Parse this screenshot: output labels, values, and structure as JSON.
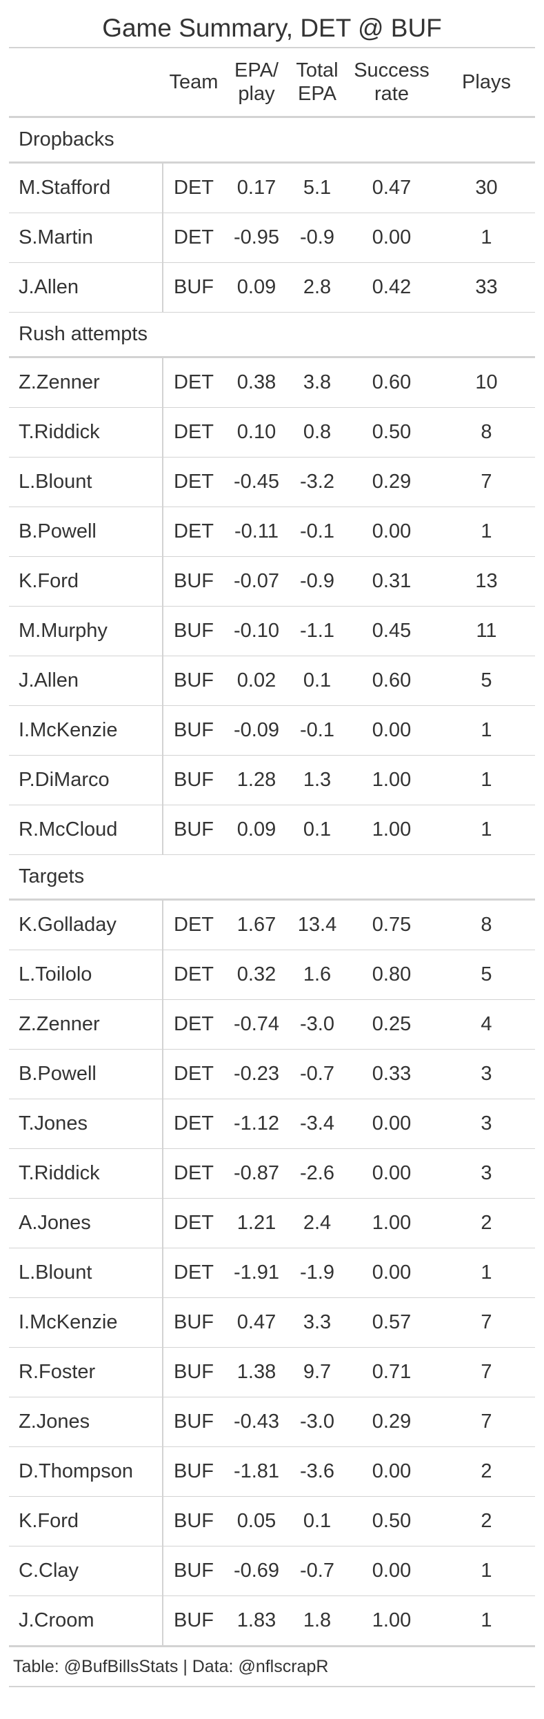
{
  "title": "Game Summary, DET @ BUF",
  "headers": {
    "name": "",
    "team": "Team",
    "epa_line1": "EPA/",
    "epa_line2": "play",
    "total_line1": "Total",
    "total_line2": "EPA",
    "success_line1": "Success",
    "success_line2": "rate",
    "plays": "Plays"
  },
  "groups": [
    {
      "label": "Dropbacks",
      "rows": [
        {
          "name": "M.Stafford",
          "team": "DET",
          "epa_play": "0.17",
          "total_epa": "5.1",
          "success_rate": "0.47",
          "plays": "30"
        },
        {
          "name": "S.Martin",
          "team": "DET",
          "epa_play": "-0.95",
          "total_epa": "-0.9",
          "success_rate": "0.00",
          "plays": "1"
        },
        {
          "name": "J.Allen",
          "team": "BUF",
          "epa_play": "0.09",
          "total_epa": "2.8",
          "success_rate": "0.42",
          "plays": "33"
        }
      ]
    },
    {
      "label": "Rush attempts",
      "rows": [
        {
          "name": "Z.Zenner",
          "team": "DET",
          "epa_play": "0.38",
          "total_epa": "3.8",
          "success_rate": "0.60",
          "plays": "10"
        },
        {
          "name": "T.Riddick",
          "team": "DET",
          "epa_play": "0.10",
          "total_epa": "0.8",
          "success_rate": "0.50",
          "plays": "8"
        },
        {
          "name": "L.Blount",
          "team": "DET",
          "epa_play": "-0.45",
          "total_epa": "-3.2",
          "success_rate": "0.29",
          "plays": "7"
        },
        {
          "name": "B.Powell",
          "team": "DET",
          "epa_play": "-0.11",
          "total_epa": "-0.1",
          "success_rate": "0.00",
          "plays": "1"
        },
        {
          "name": "K.Ford",
          "team": "BUF",
          "epa_play": "-0.07",
          "total_epa": "-0.9",
          "success_rate": "0.31",
          "plays": "13"
        },
        {
          "name": "M.Murphy",
          "team": "BUF",
          "epa_play": "-0.10",
          "total_epa": "-1.1",
          "success_rate": "0.45",
          "plays": "11"
        },
        {
          "name": "J.Allen",
          "team": "BUF",
          "epa_play": "0.02",
          "total_epa": "0.1",
          "success_rate": "0.60",
          "plays": "5"
        },
        {
          "name": "I.McKenzie",
          "team": "BUF",
          "epa_play": "-0.09",
          "total_epa": "-0.1",
          "success_rate": "0.00",
          "plays": "1"
        },
        {
          "name": "P.DiMarco",
          "team": "BUF",
          "epa_play": "1.28",
          "total_epa": "1.3",
          "success_rate": "1.00",
          "plays": "1"
        },
        {
          "name": "R.McCloud",
          "team": "BUF",
          "epa_play": "0.09",
          "total_epa": "0.1",
          "success_rate": "1.00",
          "plays": "1"
        }
      ]
    },
    {
      "label": "Targets",
      "rows": [
        {
          "name": "K.Golladay",
          "team": "DET",
          "epa_play": "1.67",
          "total_epa": "13.4",
          "success_rate": "0.75",
          "plays": "8"
        },
        {
          "name": "L.Toilolo",
          "team": "DET",
          "epa_play": "0.32",
          "total_epa": "1.6",
          "success_rate": "0.80",
          "plays": "5"
        },
        {
          "name": "Z.Zenner",
          "team": "DET",
          "epa_play": "-0.74",
          "total_epa": "-3.0",
          "success_rate": "0.25",
          "plays": "4"
        },
        {
          "name": "B.Powell",
          "team": "DET",
          "epa_play": "-0.23",
          "total_epa": "-0.7",
          "success_rate": "0.33",
          "plays": "3"
        },
        {
          "name": "T.Jones",
          "team": "DET",
          "epa_play": "-1.12",
          "total_epa": "-3.4",
          "success_rate": "0.00",
          "plays": "3"
        },
        {
          "name": "T.Riddick",
          "team": "DET",
          "epa_play": "-0.87",
          "total_epa": "-2.6",
          "success_rate": "0.00",
          "plays": "3"
        },
        {
          "name": "A.Jones",
          "team": "DET",
          "epa_play": "1.21",
          "total_epa": "2.4",
          "success_rate": "1.00",
          "plays": "2"
        },
        {
          "name": "L.Blount",
          "team": "DET",
          "epa_play": "-1.91",
          "total_epa": "-1.9",
          "success_rate": "0.00",
          "plays": "1"
        },
        {
          "name": "I.McKenzie",
          "team": "BUF",
          "epa_play": "0.47",
          "total_epa": "3.3",
          "success_rate": "0.57",
          "plays": "7"
        },
        {
          "name": "R.Foster",
          "team": "BUF",
          "epa_play": "1.38",
          "total_epa": "9.7",
          "success_rate": "0.71",
          "plays": "7"
        },
        {
          "name": "Z.Jones",
          "team": "BUF",
          "epa_play": "-0.43",
          "total_epa": "-3.0",
          "success_rate": "0.29",
          "plays": "7"
        },
        {
          "name": "D.Thompson",
          "team": "BUF",
          "epa_play": "-1.81",
          "total_epa": "-3.6",
          "success_rate": "0.00",
          "plays": "2"
        },
        {
          "name": "K.Ford",
          "team": "BUF",
          "epa_play": "0.05",
          "total_epa": "0.1",
          "success_rate": "0.50",
          "plays": "2"
        },
        {
          "name": "C.Clay",
          "team": "BUF",
          "epa_play": "-0.69",
          "total_epa": "-0.7",
          "success_rate": "0.00",
          "plays": "1"
        },
        {
          "name": "J.Croom",
          "team": "BUF",
          "epa_play": "1.83",
          "total_epa": "1.8",
          "success_rate": "1.00",
          "plays": "1"
        }
      ]
    }
  ],
  "footer": "Table: @BufBillsStats | Data: @nflscrapR"
}
